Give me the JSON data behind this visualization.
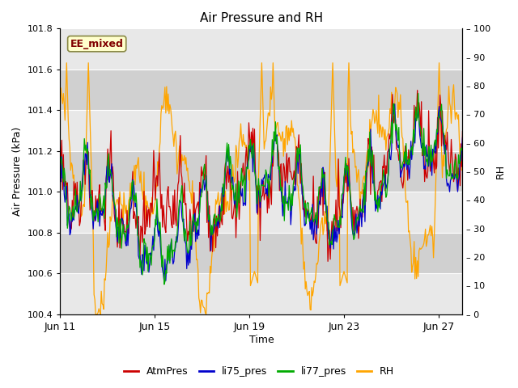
{
  "title": "Air Pressure and RH",
  "xlabel": "Time",
  "ylabel_left": "Air Pressure (kPa)",
  "ylabel_right": "RH",
  "annotation": "EE_mixed",
  "ylim_left": [
    100.4,
    101.8
  ],
  "ylim_right": [
    0,
    100
  ],
  "yticks_left": [
    100.4,
    100.6,
    100.8,
    101.0,
    101.2,
    101.4,
    101.6,
    101.8
  ],
  "yticks_right": [
    0,
    10,
    20,
    30,
    40,
    50,
    60,
    70,
    80,
    90,
    100
  ],
  "x_tick_positions": [
    0,
    4,
    8,
    12,
    16
  ],
  "x_tick_labels": [
    "Jun 11",
    "Jun 15",
    "Jun 19",
    "Jun 23",
    "Jun 27"
  ],
  "colors": {
    "AtmPres": "#cc0000",
    "li75_pres": "#0000cc",
    "li77_pres": "#00aa00",
    "RH": "#ffa500"
  },
  "bg_color": "#ffffff",
  "plot_bg_color": "#d8d8d8",
  "grid_color": "#ffffff",
  "band_color_light": "#e8e8e8",
  "band_color_dark": "#d0d0d0",
  "annotation_bg": "#ffffcc",
  "annotation_border": "#888844",
  "annotation_text_color": "#800000",
  "n_points": 500,
  "date_start": 0,
  "date_end": 17,
  "seed": 99
}
